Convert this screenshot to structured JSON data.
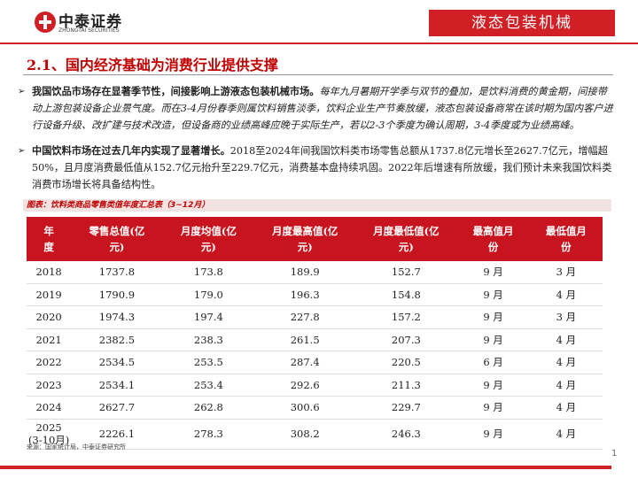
{
  "header": {
    "logo_cn": "中泰证券",
    "logo_en": "ZHONGTAI SECURITIES",
    "industry": "液态包装机械"
  },
  "section_title": "2.1、国内经济基础为消费行业提供支撑",
  "bullets": [
    {
      "bold": "我国饮品市场存在显著季节性，间接影响上游液态包装机械市场。",
      "text": "每年九月暑期开学季与双节的叠加，是饮料消费的黄金期，间接带动上游包装设备企业景气度。而在3-4月份春季则属饮料销售淡季，饮料企业生产节奏放缓，液态包装设备商常在该时期为国内客户进行设备升级、改扩建与技术改造，但设备商的业绩高峰应晚于实际生产，若以2-3个季度为确认周期，3-4季度或为业绩高峰。"
    },
    {
      "bold": "中国饮料市场在过去几年内实现了显著增长。",
      "text": "2018至2024年间我国饮料类市场零售总额从1737.8亿元增长至2627.7亿元，增幅超50%，且月度消费最低值从152.7亿元抬升至229.7亿元，消费基本盘持续巩固。2022年后增速有所放缓，我们预计未来我国饮料类消费市场增长将具备结构性。"
    }
  ],
  "table": {
    "caption": "图表：饮料类商品零售类值年度汇总表（3~12月）",
    "columns": [
      "年度",
      "零售总值(亿元)",
      "月度均值(亿元)",
      "月度最高值(亿元)",
      "月度最低值(亿元)",
      "最高值月份",
      "最低值月份"
    ],
    "rows": [
      [
        "2018",
        "1737.8",
        "173.8",
        "189.9",
        "152.7",
        "9 月",
        "3 月"
      ],
      [
        "2019",
        "1790.9",
        "179.0",
        "196.3",
        "154.8",
        "9 月",
        "4 月"
      ],
      [
        "2020",
        "1974.3",
        "197.4",
        "227.8",
        "157.2",
        "9 月",
        "3 月"
      ],
      [
        "2021",
        "2382.5",
        "238.3",
        "261.5",
        "207.3",
        "9 月",
        "4 月"
      ],
      [
        "2022",
        "2534.5",
        "253.5",
        "287.4",
        "220.5",
        "6 月",
        "4 月"
      ],
      [
        "2023",
        "2534.1",
        "253.4",
        "292.6",
        "211.3",
        "9 月",
        "4 月"
      ],
      [
        "2024",
        "2627.7",
        "262.8",
        "300.6",
        "229.7",
        "9 月",
        "4 月"
      ],
      [
        "2025\n(3-10月)",
        "2226.1",
        "278.3",
        "308.2",
        "246.3",
        "9 月",
        "4 月"
      ]
    ]
  },
  "source": "来源：国家统计局，中泰证券研究所",
  "page_number": "1"
}
